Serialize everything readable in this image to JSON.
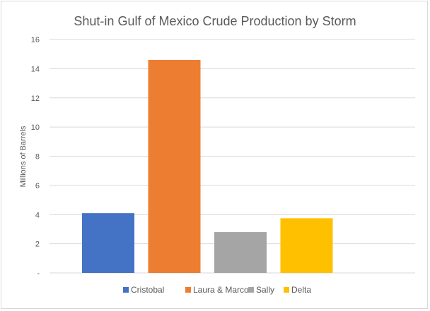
{
  "chart_data": {
    "type": "bar",
    "title": "Shut-in Gulf of Mexico Crude Production by Storm",
    "xlabel": "",
    "ylabel": "Millions of Barrels",
    "categories": [
      "Cristobal",
      "Laura & Marco",
      "Sally",
      "Delta"
    ],
    "values": [
      4.1,
      14.6,
      2.8,
      3.75
    ],
    "colors": [
      "#4472c4",
      "#ed7d31",
      "#a5a5a5",
      "#ffc000"
    ],
    "ylim": [
      0,
      16
    ],
    "yticks": [
      0,
      2,
      4,
      6,
      8,
      10,
      12,
      14,
      16
    ],
    "ytick_labels": [
      "-",
      "2",
      "4",
      "6",
      "8",
      "10",
      "12",
      "14",
      "16"
    ],
    "grid": true,
    "legend_position": "bottom"
  }
}
